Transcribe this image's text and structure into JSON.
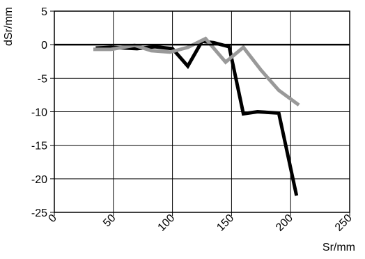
{
  "chart_data": {
    "type": "line",
    "title": "",
    "xlabel": "Sr/mm",
    "ylabel": "dSr/mm",
    "xlim": [
      0,
      250
    ],
    "ylim": [
      -25,
      5
    ],
    "xticks": [
      0,
      50,
      100,
      150,
      200,
      250
    ],
    "yticks": [
      5,
      0,
      -5,
      -10,
      -15,
      -20,
      -25
    ],
    "xtick_labels": [
      "0",
      "50",
      "100",
      "150",
      "200",
      "250"
    ],
    "ytick_labels": [
      "5",
      "0",
      "-5",
      "-10",
      "-15",
      "-20",
      "-25"
    ],
    "grid": true,
    "legend": "none",
    "series": [
      {
        "color": "#000000",
        "x": [
          35,
          48,
          70,
          85,
          100,
          113,
          125,
          135,
          148,
          160,
          172,
          190,
          205
        ],
        "y": [
          -0.5,
          -0.4,
          -0.6,
          -0.3,
          -0.6,
          -3.2,
          0.5,
          0.3,
          -0.3,
          -10.3,
          -10.0,
          -10.2,
          -22.5
        ]
      },
      {
        "color": "#999999",
        "x": [
          33,
          48,
          68,
          82,
          98,
          113,
          128,
          145,
          160,
          175,
          190,
          207
        ],
        "y": [
          -0.7,
          -0.7,
          -0.1,
          -0.9,
          -1.1,
          -0.4,
          0.9,
          -2.6,
          -0.4,
          -3.8,
          -6.8,
          -9.0
        ]
      }
    ]
  }
}
